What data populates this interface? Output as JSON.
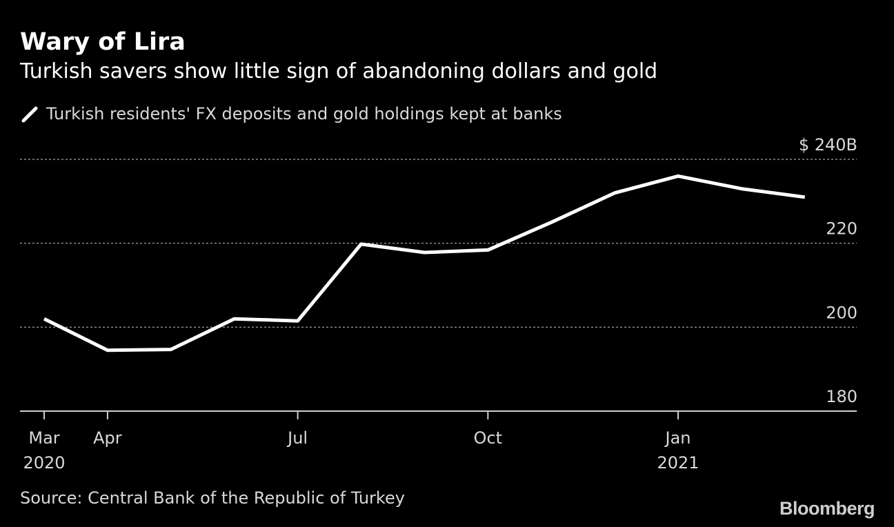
{
  "header": {
    "title": "Wary of Lira",
    "subtitle": "Turkish savers show little sign of abandoning dollars and gold"
  },
  "footer": {
    "source": "Source: Central Bank of the Republic of Turkey",
    "brand": "Bloomberg"
  },
  "colors": {
    "background": "#000000",
    "line": "#ffffff",
    "grid": "#8c8c8c",
    "text_secondary": "#d9d9d9"
  },
  "chart_data": {
    "type": "line",
    "x": [
      "Mar 2020",
      "Apr 2020",
      "May 2020",
      "Jun 2020",
      "Jul 2020",
      "Aug 2020",
      "Sep 2020",
      "Oct 2020",
      "Nov 2020",
      "Dec 2020",
      "Jan 2021",
      "Feb 2021",
      "Mar 2021"
    ],
    "series": [
      {
        "name": "Turkish residents' FX deposits and gold holdings kept at banks",
        "values": [
          202,
          194.5,
          194.7,
          202,
          201.5,
          219.8,
          217.8,
          218.4,
          225,
          232,
          236,
          233,
          231
        ]
      }
    ],
    "ylim": [
      180,
      240
    ],
    "y_ticks": [
      {
        "value": 180,
        "label": "180"
      },
      {
        "value": 200,
        "label": "200"
      },
      {
        "value": 220,
        "label": "220"
      },
      {
        "value": 240,
        "label": "$ 240B"
      }
    ],
    "x_ticks": [
      {
        "index": 0,
        "label": "Mar",
        "sublabel": "2020"
      },
      {
        "index": 1,
        "label": "Apr",
        "sublabel": ""
      },
      {
        "index": 4,
        "label": "Jul",
        "sublabel": ""
      },
      {
        "index": 7,
        "label": "Oct",
        "sublabel": ""
      },
      {
        "index": 10,
        "label": "Jan",
        "sublabel": "2021"
      }
    ],
    "grid": true,
    "legend_position": "top-left"
  }
}
